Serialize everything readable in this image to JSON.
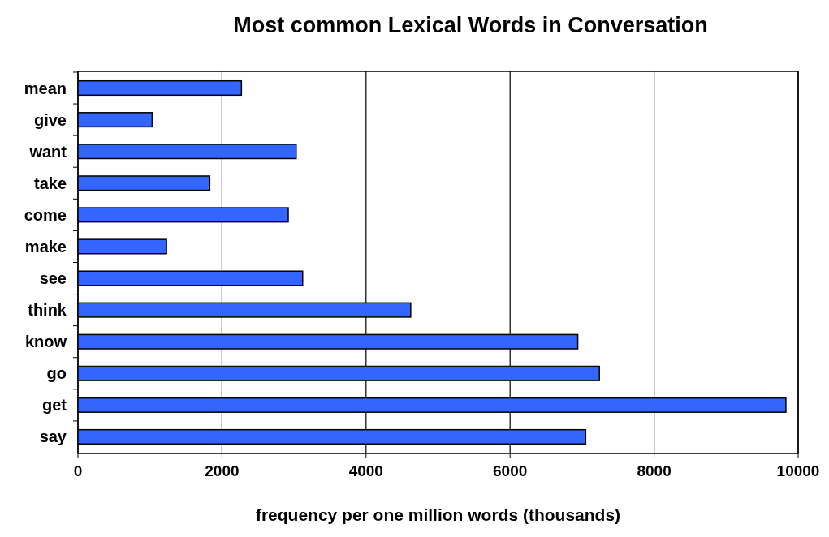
{
  "chart_data": {
    "type": "bar",
    "orientation": "horizontal",
    "title": "Most common Lexical Words in Conversation",
    "xlabel": "frequency per one million words (thousands)",
    "categories": [
      "mean",
      "give",
      "want",
      "take",
      "come",
      "make",
      "see",
      "think",
      "know",
      "go",
      "get",
      "say"
    ],
    "values": [
      2270,
      1030,
      3030,
      1830,
      2920,
      1230,
      3120,
      4620,
      6940,
      7240,
      9830,
      7050
    ],
    "color": "#3366ff",
    "xlim": [
      0,
      10000
    ],
    "xticks": [
      0,
      2000,
      4000,
      6000,
      8000,
      10000
    ],
    "grid": "x"
  }
}
